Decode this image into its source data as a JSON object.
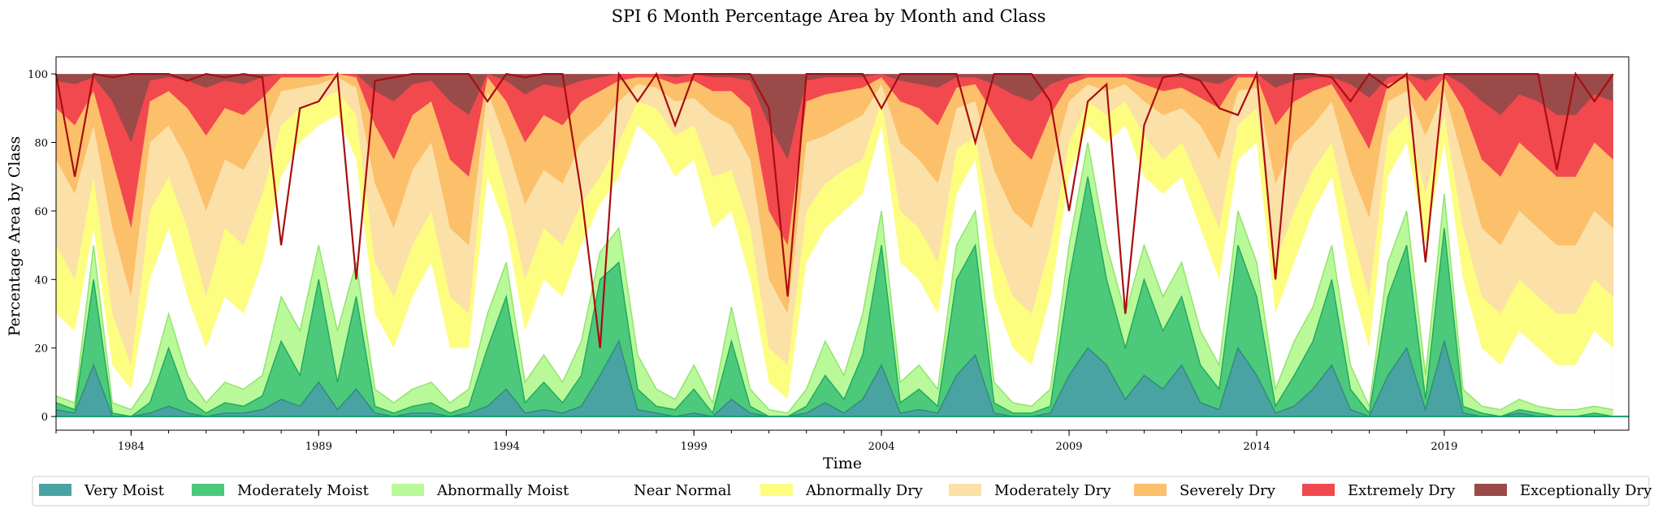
{
  "chart_data": {
    "type": "area",
    "title": "SPI 6 Month Percentage Area by Month and Class",
    "xlabel": "Time",
    "ylabel": "Percentage Area by Class",
    "xlim": [
      "1982-01",
      "2023-12"
    ],
    "ylim": [
      -4,
      105
    ],
    "x_ticks": [
      "1984",
      "1989",
      "1994",
      "1999",
      "2004",
      "2009",
      "2014",
      "2019"
    ],
    "y_ticks": [
      0,
      20,
      40,
      60,
      80,
      100
    ],
    "grid": false,
    "legend": {
      "position": "bottom",
      "entries": [
        {
          "name": "Very Moist",
          "color": "#4aa3a3"
        },
        {
          "name": "Moderately Moist",
          "color": "#4cc97b"
        },
        {
          "name": "Abnormally Moist",
          "color": "#b9f99a"
        },
        {
          "name": "Near Normal",
          "color": "#ffffff"
        },
        {
          "name": "Abnormally Dry",
          "color": "#fdfd80"
        },
        {
          "name": "Moderately Dry",
          "color": "#fbe0a8"
        },
        {
          "name": "Severely Dry",
          "color": "#fcbf6a"
        },
        {
          "name": "Extremely Dry",
          "color": "#f2494f"
        },
        {
          "name": "Exceptionally Dry",
          "color": "#9b4a4a"
        }
      ]
    },
    "line_color": "#a80e0e",
    "x": [
      "1982",
      "1982.5",
      "1983",
      "1983.5",
      "1984",
      "1984.5",
      "1985",
      "1985.5",
      "1986",
      "1986.5",
      "1987",
      "1987.5",
      "1988",
      "1988.5",
      "1989",
      "1989.5",
      "1990",
      "1990.5",
      "1991",
      "1991.5",
      "1992",
      "1992.5",
      "1993",
      "1993.5",
      "1994",
      "1994.5",
      "1995",
      "1995.5",
      "1996",
      "1996.5",
      "1997",
      "1997.5",
      "1998",
      "1998.5",
      "1999",
      "1999.5",
      "2000",
      "2000.5",
      "2001",
      "2001.5",
      "2002",
      "2002.5",
      "2003",
      "2003.5",
      "2004",
      "2004.5",
      "2005",
      "2005.5",
      "2006",
      "2006.5",
      "2007",
      "2007.5",
      "2008",
      "2008.5",
      "2009",
      "2009.5",
      "2010",
      "2010.5",
      "2011",
      "2011.5",
      "2012",
      "2012.5",
      "2013",
      "2013.5",
      "2014",
      "2014.5",
      "2015",
      "2015.5",
      "2016",
      "2016.5",
      "2017",
      "2017.5",
      "2018",
      "2018.5",
      "2019",
      "2019.5",
      "2020",
      "2020.5",
      "2021",
      "2021.5",
      "2022",
      "2022.5",
      "2023",
      "2023.5"
    ],
    "series": [
      {
        "name": "Very Moist",
        "values": [
          2,
          1,
          15,
          0,
          0,
          1,
          3,
          1,
          0,
          1,
          1,
          2,
          5,
          3,
          10,
          2,
          8,
          1,
          0,
          1,
          1,
          0,
          1,
          3,
          8,
          1,
          2,
          1,
          3,
          12,
          22,
          2,
          1,
          0,
          1,
          0,
          5,
          1,
          0,
          0,
          1,
          4,
          1,
          5,
          15,
          1,
          2,
          1,
          12,
          18,
          1,
          0,
          0,
          1,
          12,
          20,
          15,
          5,
          12,
          8,
          15,
          4,
          2,
          20,
          12,
          1,
          3,
          8,
          15,
          2,
          0,
          12,
          20,
          2,
          22,
          1,
          0,
          0,
          1,
          0,
          0,
          0,
          0,
          0
        ]
      },
      {
        "name": "Moderately Moist",
        "values": [
          4,
          2,
          40,
          1,
          0,
          4,
          20,
          5,
          1,
          4,
          3,
          6,
          22,
          12,
          40,
          10,
          35,
          3,
          1,
          3,
          4,
          1,
          3,
          20,
          35,
          4,
          10,
          4,
          12,
          40,
          45,
          8,
          3,
          2,
          8,
          1,
          22,
          3,
          0,
          0,
          3,
          12,
          5,
          18,
          50,
          4,
          8,
          3,
          40,
          50,
          4,
          1,
          1,
          3,
          40,
          70,
          40,
          20,
          40,
          25,
          35,
          15,
          8,
          50,
          35,
          3,
          12,
          22,
          40,
          8,
          1,
          35,
          50,
          5,
          55,
          3,
          1,
          0,
          2,
          1,
          0,
          0,
          1,
          0
        ]
      },
      {
        "name": "Abnormally Moist",
        "values": [
          6,
          4,
          50,
          4,
          2,
          10,
          30,
          12,
          4,
          10,
          8,
          12,
          35,
          25,
          50,
          25,
          45,
          8,
          4,
          8,
          10,
          4,
          8,
          30,
          45,
          10,
          18,
          10,
          22,
          48,
          55,
          18,
          8,
          5,
          15,
          4,
          32,
          8,
          2,
          1,
          8,
          22,
          12,
          30,
          60,
          10,
          15,
          8,
          50,
          60,
          10,
          4,
          3,
          8,
          50,
          80,
          50,
          30,
          50,
          35,
          45,
          25,
          15,
          60,
          45,
          8,
          22,
          32,
          50,
          15,
          3,
          45,
          60,
          12,
          65,
          8,
          3,
          2,
          5,
          3,
          2,
          2,
          3,
          2
        ]
      },
      {
        "name": "Near Normal",
        "values": [
          30,
          25,
          55,
          15,
          8,
          40,
          55,
          35,
          20,
          35,
          30,
          45,
          70,
          80,
          85,
          88,
          75,
          30,
          20,
          35,
          45,
          20,
          20,
          70,
          55,
          25,
          40,
          35,
          50,
          62,
          70,
          85,
          80,
          70,
          75,
          55,
          60,
          40,
          10,
          5,
          45,
          55,
          60,
          65,
          85,
          45,
          40,
          30,
          65,
          75,
          35,
          20,
          15,
          35,
          70,
          85,
          80,
          85,
          70,
          65,
          70,
          55,
          40,
          75,
          80,
          30,
          45,
          60,
          70,
          40,
          20,
          70,
          80,
          50,
          80,
          40,
          20,
          15,
          25,
          20,
          15,
          15,
          25,
          20
        ]
      },
      {
        "name": "Abnormally Dry",
        "values": [
          50,
          40,
          70,
          30,
          15,
          60,
          70,
          55,
          35,
          55,
          50,
          65,
          85,
          90,
          92,
          95,
          88,
          45,
          35,
          50,
          60,
          35,
          30,
          85,
          65,
          40,
          55,
          50,
          62,
          70,
          80,
          92,
          90,
          82,
          85,
          70,
          72,
          55,
          20,
          15,
          60,
          68,
          72,
          75,
          92,
          60,
          55,
          45,
          78,
          82,
          50,
          35,
          30,
          50,
          80,
          92,
          88,
          92,
          82,
          75,
          80,
          68,
          55,
          85,
          90,
          45,
          60,
          72,
          80,
          55,
          35,
          82,
          88,
          65,
          88,
          55,
          35,
          30,
          40,
          35,
          30,
          30,
          40,
          35
        ]
      },
      {
        "name": "Moderately Dry",
        "values": [
          75,
          65,
          85,
          55,
          35,
          80,
          85,
          75,
          60,
          75,
          72,
          82,
          95,
          96,
          97,
          99,
          96,
          68,
          55,
          72,
          80,
          55,
          50,
          95,
          80,
          62,
          72,
          68,
          80,
          85,
          92,
          97,
          96,
          92,
          93,
          88,
          85,
          75,
          40,
          30,
          80,
          82,
          85,
          88,
          97,
          80,
          75,
          68,
          90,
          92,
          72,
          60,
          55,
          72,
          92,
          97,
          95,
          97,
          92,
          88,
          90,
          85,
          75,
          95,
          96,
          68,
          80,
          85,
          92,
          72,
          58,
          92,
          95,
          82,
          95,
          75,
          55,
          50,
          60,
          55,
          50,
          50,
          60,
          55
        ]
      },
      {
        "name": "Severely Dry",
        "values": [
          90,
          85,
          95,
          75,
          55,
          92,
          95,
          90,
          82,
          90,
          88,
          93,
          99,
          99,
          99,
          100,
          99,
          85,
          75,
          88,
          92,
          75,
          70,
          99,
          92,
          80,
          88,
          85,
          92,
          95,
          98,
          99,
          99,
          97,
          98,
          95,
          95,
          90,
          60,
          50,
          92,
          94,
          95,
          96,
          99,
          92,
          90,
          85,
          96,
          97,
          88,
          80,
          75,
          88,
          97,
          99,
          99,
          99,
          97,
          95,
          96,
          93,
          90,
          99,
          99,
          85,
          92,
          95,
          97,
          88,
          78,
          97,
          99,
          92,
          99,
          90,
          75,
          70,
          80,
          75,
          70,
          70,
          80,
          75
        ]
      },
      {
        "name": "Extremely Dry",
        "values": [
          98,
          97,
          99,
          92,
          80,
          98,
          99,
          98,
          96,
          98,
          97,
          99,
          100,
          100,
          100,
          100,
          100,
          95,
          92,
          97,
          98,
          92,
          88,
          100,
          98,
          94,
          97,
          96,
          98,
          99,
          100,
          100,
          100,
          99,
          100,
          99,
          99,
          98,
          85,
          75,
          98,
          99,
          99,
          99,
          100,
          98,
          97,
          96,
          99,
          99,
          97,
          94,
          92,
          97,
          99,
          100,
          100,
          100,
          99,
          99,
          99,
          98,
          97,
          100,
          100,
          96,
          98,
          99,
          99,
          97,
          93,
          99,
          100,
          98,
          100,
          97,
          92,
          88,
          94,
          92,
          88,
          88,
          94,
          92
        ]
      },
      {
        "name": "Exceptionally Dry",
        "values": [
          100,
          100,
          100,
          100,
          100,
          100,
          100,
          100,
          100,
          100,
          100,
          100,
          100,
          100,
          100,
          100,
          100,
          100,
          100,
          100,
          100,
          100,
          100,
          100,
          100,
          100,
          100,
          100,
          100,
          100,
          100,
          100,
          100,
          100,
          100,
          100,
          100,
          100,
          100,
          100,
          100,
          100,
          100,
          100,
          100,
          100,
          100,
          100,
          100,
          100,
          100,
          100,
          100,
          100,
          100,
          100,
          100,
          100,
          100,
          100,
          100,
          100,
          100,
          100,
          100,
          100,
          100,
          100,
          100,
          100,
          100,
          100,
          100,
          100,
          100,
          100,
          100,
          100,
          100,
          100,
          100,
          100,
          100,
          100
        ]
      }
    ],
    "line_values": [
      100,
      70,
      100,
      99,
      100,
      100,
      100,
      98,
      100,
      99,
      100,
      99,
      50,
      90,
      92,
      100,
      40,
      98,
      99,
      100,
      100,
      100,
      100,
      92,
      100,
      99,
      100,
      100,
      65,
      20,
      100,
      92,
      100,
      85,
      100,
      100,
      100,
      100,
      90,
      35,
      100,
      100,
      100,
      100,
      90,
      100,
      100,
      100,
      100,
      80,
      100,
      100,
      100,
      92,
      60,
      92,
      97,
      30,
      85,
      99,
      100,
      98,
      90,
      88,
      100,
      40,
      100,
      100,
      99,
      92,
      100,
      96,
      100,
      45,
      100,
      100,
      100,
      100,
      100,
      100,
      72,
      100,
      92,
      100
    ]
  }
}
